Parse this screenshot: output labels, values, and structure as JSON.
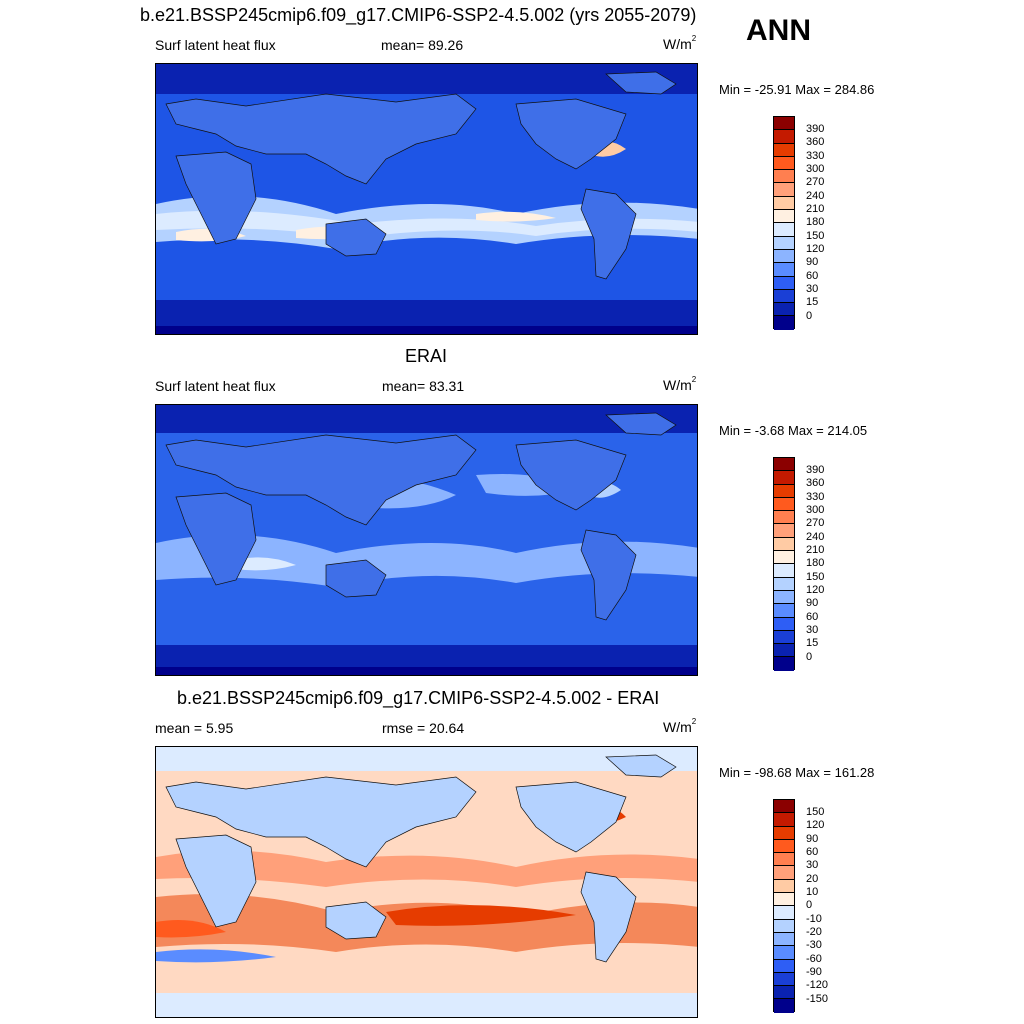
{
  "panels": [
    {
      "title": "b.e21.BSSP245cmip6.f09_g17.CMIP6-SSP2-4.5.002 (yrs 2055-2079)",
      "left_label": "Surf latent heat flux",
      "mid_label": "mean=  89.26",
      "unit_base": "W/m",
      "unit_exp": "2",
      "minmax": "Min = -25.91 Max = 284.86",
      "colorbar": {
        "labels": [
          "390",
          "360",
          "330",
          "300",
          "270",
          "240",
          "210",
          "180",
          "150",
          "120",
          "90",
          "60",
          "30",
          "15",
          "0"
        ],
        "colors": [
          "#8b0000",
          "#c41a00",
          "#e63c00",
          "#ff5a1e",
          "#ff7f50",
          "#ffa07a",
          "#ffcba4",
          "#fff0e1",
          "#dcebff",
          "#b4d2ff",
          "#8cb4ff",
          "#5a8cff",
          "#2e5ef5",
          "#1a3fd6",
          "#0a22b0",
          "#00008b"
        ]
      },
      "ocean_fill": "#1e55e6",
      "band_fill": "#b4d2ff"
    },
    {
      "title": "ERAI",
      "left_label": "Surf latent heat flux",
      "mid_label": "mean=  83.31",
      "unit_base": "W/m",
      "unit_exp": "2",
      "minmax": "Min =  -3.68 Max = 214.05",
      "colorbar": {
        "labels": [
          "390",
          "360",
          "330",
          "300",
          "270",
          "240",
          "210",
          "180",
          "150",
          "120",
          "90",
          "60",
          "30",
          "15",
          "0"
        ],
        "colors": [
          "#8b0000",
          "#c41a00",
          "#e63c00",
          "#ff5a1e",
          "#ff7f50",
          "#ffa07a",
          "#ffcba4",
          "#fff0e1",
          "#dcebff",
          "#b4d2ff",
          "#8cb4ff",
          "#5a8cff",
          "#2e5ef5",
          "#1a3fd6",
          "#0a22b0",
          "#00008b"
        ]
      },
      "ocean_fill": "#2a63ea",
      "band_fill": "#a9c8ff"
    },
    {
      "title": "b.e21.BSSP245cmip6.f09_g17.CMIP6-SSP2-4.5.002 - ERAI",
      "left_label": "mean =   5.95",
      "mid_label": "rmse =  20.64",
      "unit_base": "W/m",
      "unit_exp": "2",
      "minmax": "Min = -98.68 Max = 161.28",
      "colorbar": {
        "labels": [
          "150",
          "120",
          "90",
          "60",
          "30",
          "20",
          "10",
          "0",
          "-10",
          "-20",
          "-30",
          "-60",
          "-90",
          "-120",
          "-150"
        ],
        "colors": [
          "#8b0000",
          "#c41a00",
          "#e63c00",
          "#ff5a1e",
          "#ff7f50",
          "#ffa07a",
          "#ffcba4",
          "#fff0e1",
          "#dcebff",
          "#b4d2ff",
          "#8cb4ff",
          "#5a8cff",
          "#2e5ef5",
          "#1a3fd6",
          "#0a22b0",
          "#00008b"
        ]
      },
      "ocean_fill": "#ffd9c2",
      "band_fill": "#f4885a"
    }
  ],
  "season": "ANN"
}
